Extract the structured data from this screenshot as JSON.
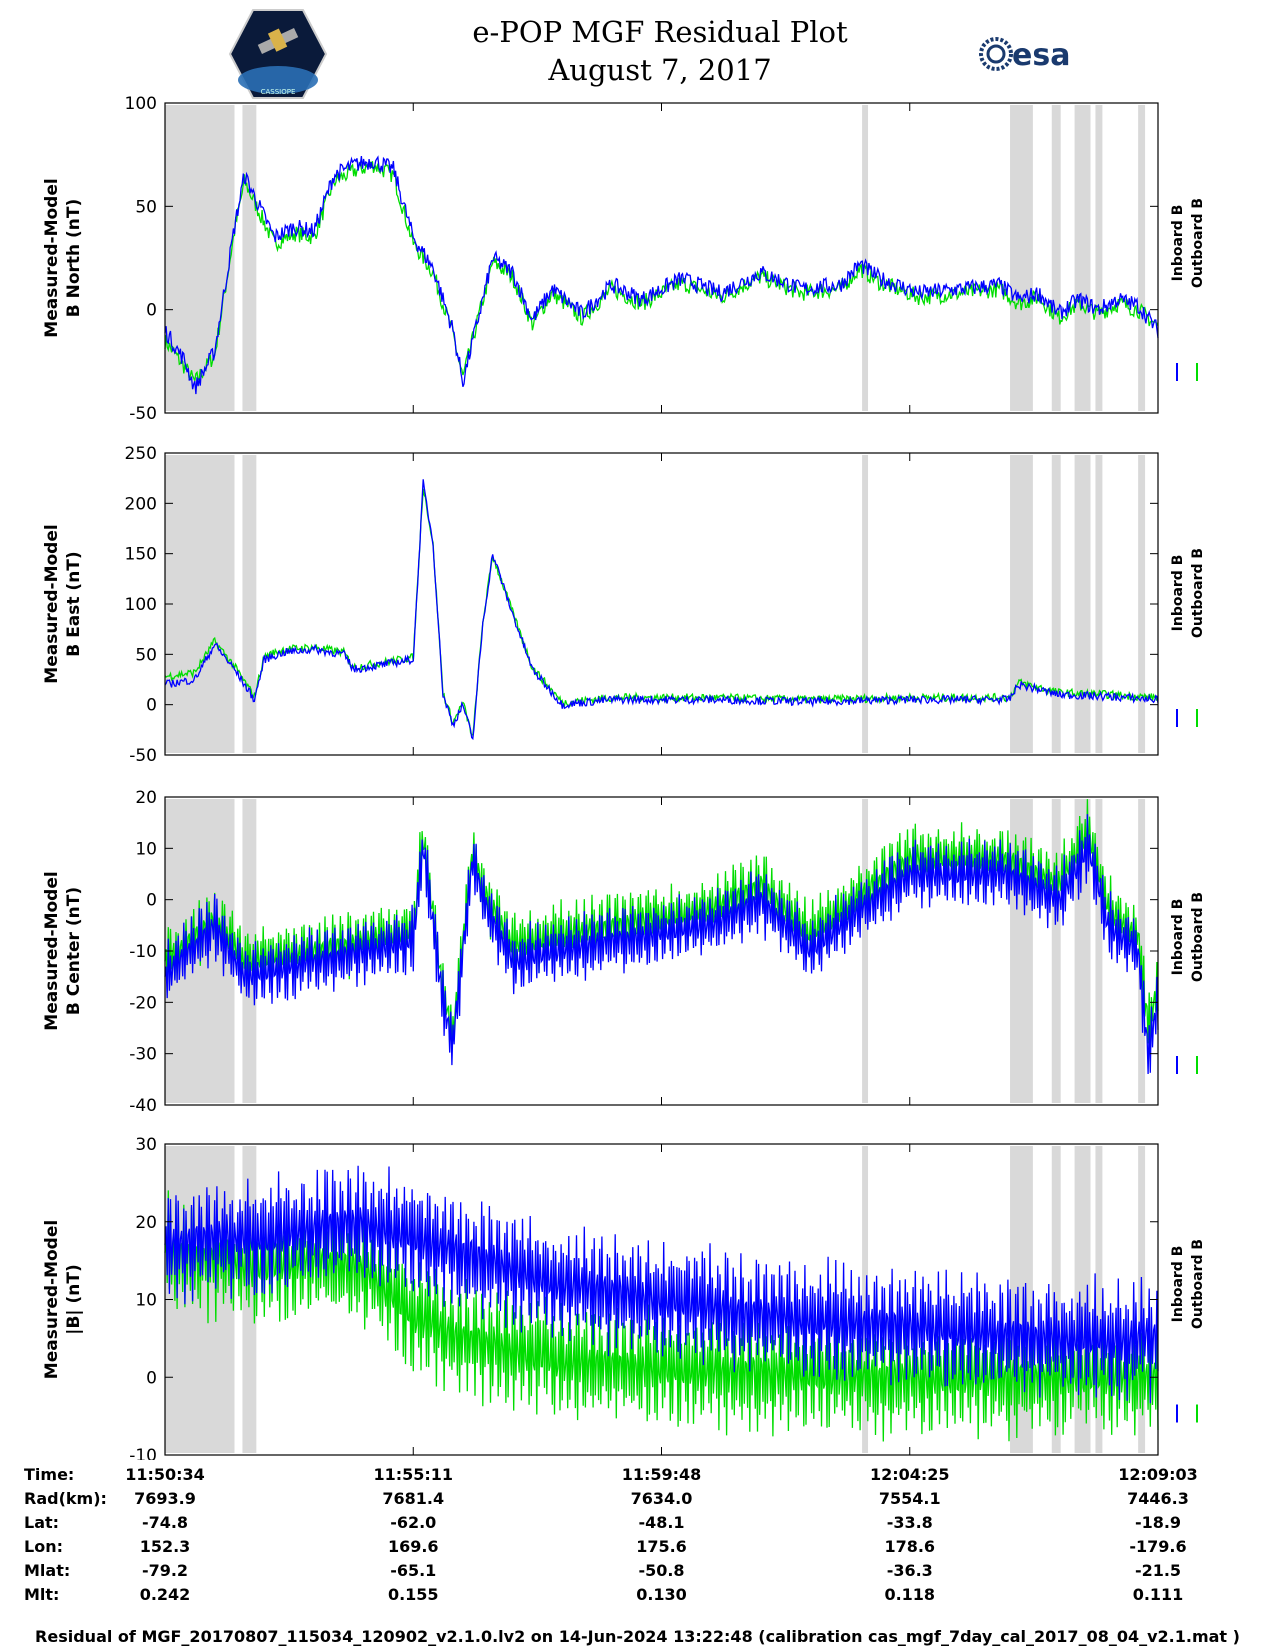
{
  "header": {
    "title_line1": "e-POP MGF Residual Plot",
    "title_line2": "August 7, 2017",
    "logo_left_text": "CASSIOPE",
    "logo_right_text": "esa"
  },
  "chart_data": [
    {
      "type": "line",
      "ylabel": [
        "Measured-Model",
        "B North (nT)"
      ],
      "ylim": [
        -50,
        100
      ],
      "yticks": [
        -50,
        0,
        50,
        100
      ],
      "series": [
        {
          "name": "Inboard B",
          "color": "#0000ff",
          "x_frac": [
            0,
            0.02,
            0.03,
            0.05,
            0.07,
            0.08,
            0.09,
            0.1,
            0.11,
            0.13,
            0.15,
            0.17,
            0.19,
            0.21,
            0.23,
            0.25,
            0.27,
            0.29,
            0.3,
            0.33,
            0.35,
            0.37,
            0.39,
            0.42,
            0.45,
            0.48,
            0.52,
            0.56,
            0.6,
            0.64,
            0.68,
            0.7,
            0.72,
            0.76,
            0.8,
            0.84,
            0.86,
            0.88,
            0.9,
            0.92,
            0.94,
            0.96,
            0.98,
            1.0
          ],
          "values": [
            -10,
            -25,
            -38,
            -20,
            40,
            65,
            55,
            45,
            35,
            40,
            38,
            65,
            70,
            72,
            68,
            35,
            20,
            -10,
            -35,
            25,
            18,
            -5,
            10,
            -2,
            12,
            5,
            15,
            8,
            18,
            10,
            12,
            22,
            15,
            8,
            10,
            12,
            5,
            8,
            -2,
            5,
            0,
            5,
            2,
            -10
          ]
        },
        {
          "name": "Outboard B",
          "color": "#00dd00",
          "x_frac": [
            0,
            0.02,
            0.03,
            0.05,
            0.07,
            0.08,
            0.09,
            0.1,
            0.11,
            0.13,
            0.15,
            0.17,
            0.19,
            0.21,
            0.23,
            0.25,
            0.27,
            0.29,
            0.3,
            0.33,
            0.35,
            0.37,
            0.39,
            0.42,
            0.45,
            0.48,
            0.52,
            0.56,
            0.6,
            0.64,
            0.68,
            0.7,
            0.72,
            0.76,
            0.8,
            0.84,
            0.86,
            0.88,
            0.9,
            0.92,
            0.94,
            0.96,
            0.98,
            1.0
          ],
          "values": [
            -15,
            -28,
            -35,
            -22,
            38,
            62,
            52,
            42,
            32,
            37,
            35,
            62,
            67,
            70,
            65,
            32,
            18,
            -12,
            -33,
            23,
            16,
            -7,
            8,
            -4,
            10,
            3,
            13,
            6,
            16,
            8,
            10,
            20,
            13,
            6,
            8,
            10,
            3,
            6,
            -4,
            3,
            -2,
            3,
            0,
            -8
          ]
        }
      ]
    },
    {
      "type": "line",
      "ylabel": [
        "Measured-Model",
        "B East (nT)"
      ],
      "ylim": [
        -50,
        250
      ],
      "yticks": [
        -50,
        0,
        50,
        100,
        150,
        200,
        250
      ],
      "series": [
        {
          "name": "Inboard B",
          "color": "#0000ff",
          "x_frac": [
            0,
            0.03,
            0.05,
            0.07,
            0.09,
            0.1,
            0.12,
            0.15,
            0.18,
            0.19,
            0.22,
            0.25,
            0.26,
            0.27,
            0.28,
            0.29,
            0.3,
            0.31,
            0.32,
            0.33,
            0.35,
            0.37,
            0.4,
            0.45,
            0.55,
            0.65,
            0.75,
            0.85,
            0.86,
            0.9,
            0.95,
            1.0
          ],
          "values": [
            20,
            25,
            60,
            35,
            5,
            45,
            52,
            55,
            50,
            35,
            40,
            45,
            220,
            160,
            10,
            -20,
            0,
            -35,
            80,
            150,
            90,
            35,
            0,
            5,
            5,
            3,
            5,
            5,
            20,
            10,
            8,
            5
          ]
        },
        {
          "name": "Outboard B",
          "color": "#00dd00",
          "x_frac": [
            0,
            0.03,
            0.05,
            0.07,
            0.09,
            0.1,
            0.12,
            0.15,
            0.18,
            0.19,
            0.22,
            0.25,
            0.26,
            0.27,
            0.28,
            0.29,
            0.3,
            0.31,
            0.32,
            0.33,
            0.35,
            0.37,
            0.4,
            0.45,
            0.55,
            0.65,
            0.75,
            0.85,
            0.86,
            0.9,
            0.95,
            1.0
          ],
          "values": [
            28,
            32,
            63,
            38,
            8,
            48,
            55,
            57,
            52,
            37,
            42,
            47,
            218,
            158,
            12,
            -18,
            2,
            -33,
            82,
            148,
            92,
            37,
            2,
            7,
            7,
            5,
            7,
            7,
            22,
            12,
            10,
            7
          ]
        }
      ]
    },
    {
      "type": "line",
      "ylabel": [
        "Measured-Model",
        "B Center (nT)"
      ],
      "ylim": [
        -40,
        20
      ],
      "yticks": [
        -40,
        -30,
        -20,
        -10,
        0,
        10,
        20
      ],
      "series": [
        {
          "name": "Inboard B",
          "color": "#0000ff",
          "x_frac": [
            0,
            0.05,
            0.08,
            0.15,
            0.25,
            0.26,
            0.27,
            0.28,
            0.29,
            0.3,
            0.31,
            0.32,
            0.35,
            0.4,
            0.45,
            0.55,
            0.6,
            0.65,
            0.7,
            0.75,
            0.85,
            0.9,
            0.93,
            0.95,
            0.98,
            0.99,
            1.0
          ],
          "values": [
            -15,
            -5,
            -15,
            -12,
            -8,
            10,
            -5,
            -20,
            -28,
            -10,
            8,
            0,
            -12,
            -10,
            -8,
            -5,
            0,
            -10,
            -2,
            5,
            5,
            0,
            10,
            -5,
            -10,
            -30,
            -20
          ]
        },
        {
          "name": "Outboard B",
          "color": "#00dd00",
          "x_frac": [
            0,
            0.05,
            0.08,
            0.15,
            0.25,
            0.26,
            0.27,
            0.28,
            0.29,
            0.3,
            0.31,
            0.32,
            0.35,
            0.4,
            0.45,
            0.55,
            0.6,
            0.65,
            0.7,
            0.75,
            0.85,
            0.9,
            0.93,
            0.95,
            0.98,
            0.99,
            1.0
          ],
          "values": [
            -12,
            -4,
            -12,
            -10,
            -6,
            12,
            -3,
            -18,
            -26,
            -8,
            10,
            2,
            -9,
            -7,
            -5,
            -2,
            3,
            -7,
            1,
            8,
            8,
            3,
            13,
            -2,
            -7,
            -25,
            -17
          ]
        }
      ]
    },
    {
      "type": "line",
      "ylabel": [
        "Measured-Model",
        "|B| (nT)"
      ],
      "ylim": [
        -10,
        30
      ],
      "yticks": [
        -10,
        0,
        10,
        20,
        30
      ],
      "series": [
        {
          "name": "Inboard B",
          "color": "#0000ff",
          "x_frac": [
            0,
            0.05,
            0.1,
            0.15,
            0.2,
            0.25,
            0.3,
            0.4,
            0.5,
            0.6,
            0.7,
            0.8,
            0.9,
            1.0
          ],
          "values": [
            17,
            18,
            18,
            19,
            20,
            18,
            16,
            12,
            10,
            8,
            7,
            6,
            5,
            5
          ]
        },
        {
          "name": "Outboard B",
          "color": "#00dd00",
          "x_frac": [
            0,
            0.05,
            0.1,
            0.15,
            0.2,
            0.25,
            0.3,
            0.4,
            0.5,
            0.6,
            0.7,
            0.8,
            0.9,
            1.0
          ],
          "values": [
            16,
            15,
            14,
            15,
            14,
            8,
            5,
            2,
            1,
            0.5,
            0,
            0,
            0,
            0
          ]
        }
      ]
    }
  ],
  "shaded_intervals_frac": [
    [
      0,
      0.07
    ],
    [
      0.078,
      0.092
    ],
    [
      0.702,
      0.708
    ],
    [
      0.851,
      0.874
    ],
    [
      0.893,
      0.902
    ],
    [
      0.916,
      0.932
    ],
    [
      0.937,
      0.944
    ],
    [
      0.98,
      0.987
    ]
  ],
  "time_ticks": [
    "11:50:34",
    "11:55:11",
    "11:59:48",
    "12:04:25",
    "12:09:03"
  ],
  "legend": [
    "Inboard B",
    "Outboard B"
  ],
  "ephemeris": {
    "rows": [
      {
        "label": "Time:",
        "values": [
          "11:50:34",
          "11:55:11",
          "11:59:48",
          "12:04:25",
          "12:09:03"
        ]
      },
      {
        "label": "Rad(km):",
        "values": [
          "7693.9",
          "7681.4",
          "7634.0",
          "7554.1",
          "7446.3"
        ]
      },
      {
        "label": "Lat:",
        "values": [
          "-74.8",
          "-62.0",
          "-48.1",
          "-33.8",
          "-18.9"
        ]
      },
      {
        "label": "Lon:",
        "values": [
          "152.3",
          "169.6",
          "175.6",
          "178.6",
          "-179.6"
        ]
      },
      {
        "label": "Mlat:",
        "values": [
          "-79.2",
          "-65.1",
          "-50.8",
          "-36.3",
          "-21.5"
        ]
      },
      {
        "label": "Mlt:",
        "values": [
          "0.242",
          "0.155",
          "0.130",
          "0.118",
          "0.111"
        ]
      }
    ]
  },
  "caption": "Residual of MGF_20170807_115034_120902_v2.1.0.lv2 on 14-Jun-2024 13:22:48 (calibration cas_mgf_7day_cal_2017_08_04_v2.1.mat )"
}
